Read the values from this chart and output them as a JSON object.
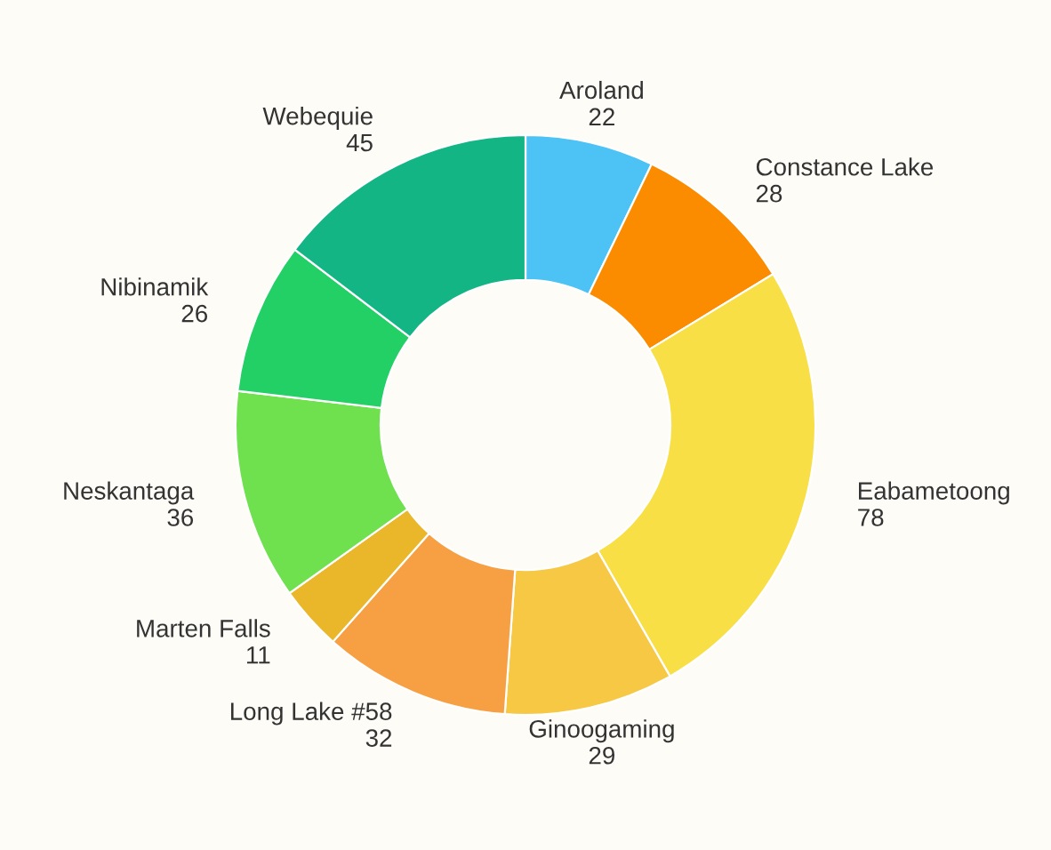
{
  "chart_data": {
    "type": "donut",
    "categories": [
      "Aroland",
      "Constance Lake",
      "Eabametoong",
      "Ginoogaming",
      "Long Lake #58",
      "Marten Falls",
      "Neskantaga",
      "Nibinamik",
      "Webequie"
    ],
    "values": [
      22,
      28,
      78,
      29,
      32,
      11,
      36,
      26,
      45
    ],
    "colors": [
      "#4cc2f5",
      "#fb8c00",
      "#f8df45",
      "#f6c844",
      "#f7a043",
      "#eab72a",
      "#6fe04e",
      "#22d066",
      "#13b585"
    ],
    "data_labels": true
  }
}
